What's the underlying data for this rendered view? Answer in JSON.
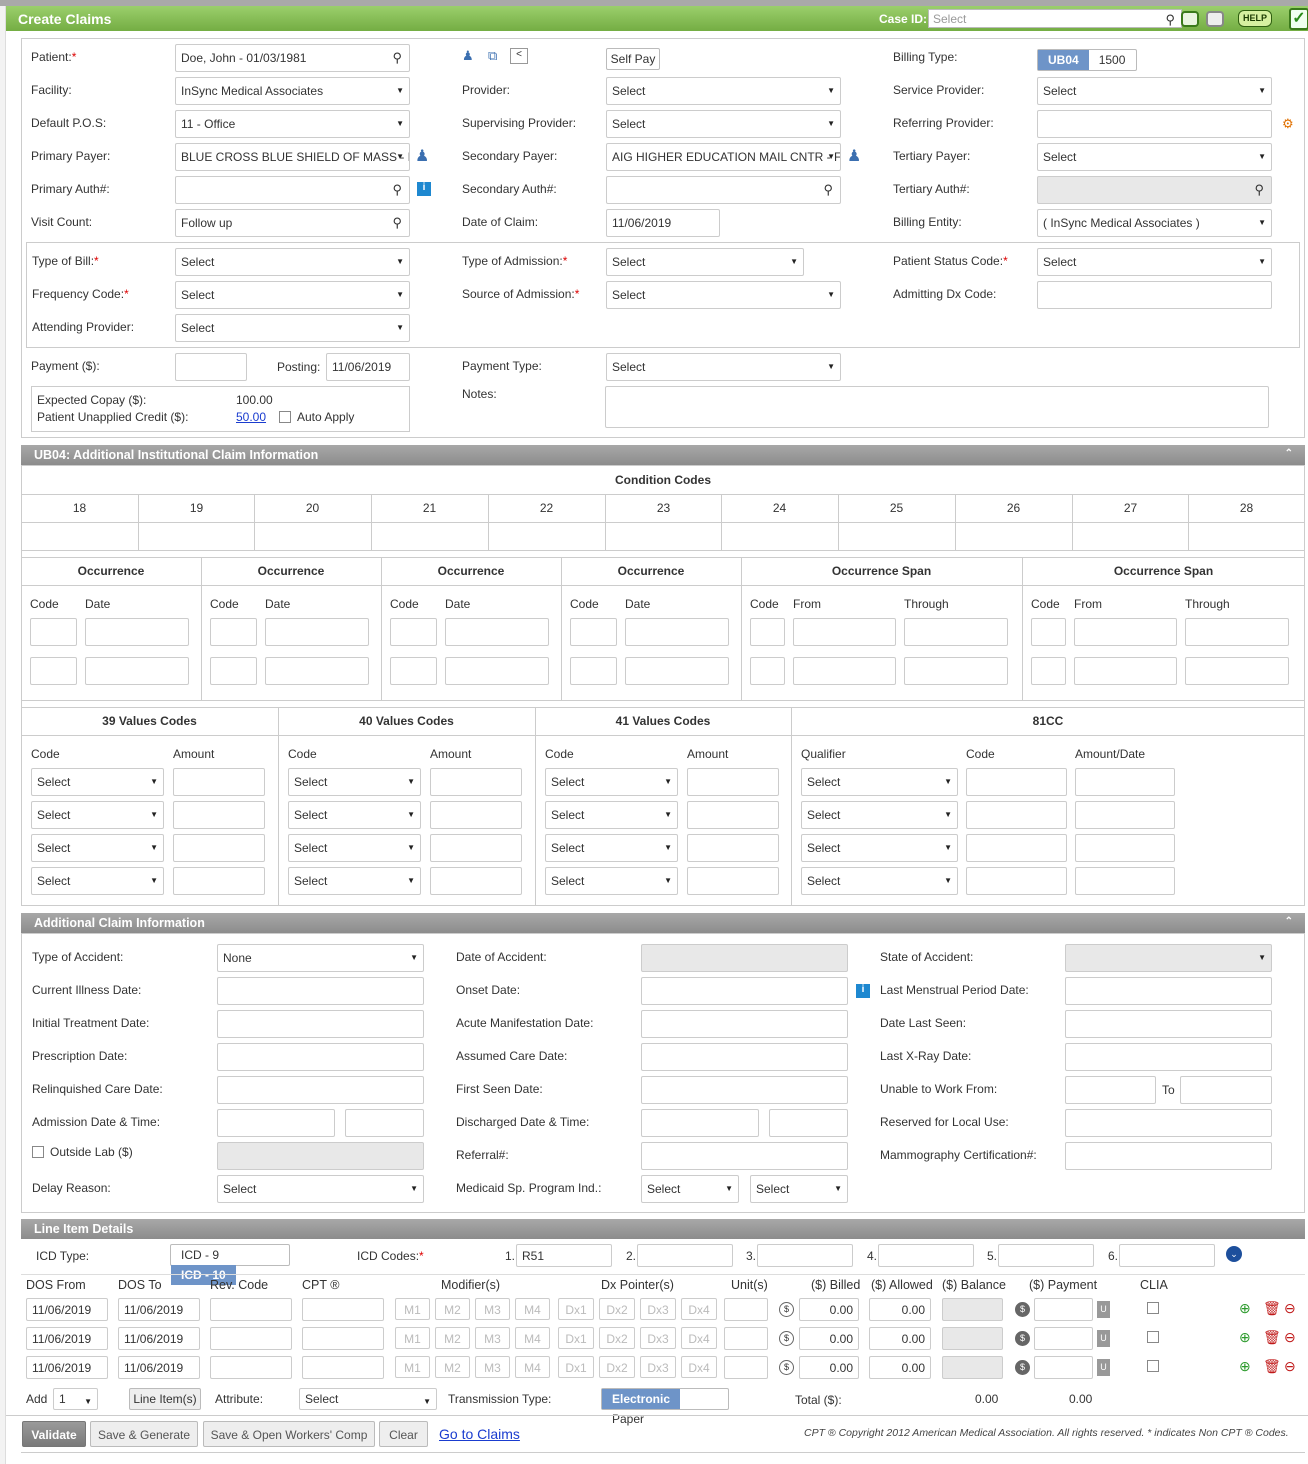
{
  "header": {
    "title": "Create Claims",
    "case_id_label": "Case ID:",
    "case_id_placeholder": "Select",
    "help": "HELP"
  },
  "claim": {
    "patient_label": "Patient:",
    "patient_value": "Doe, John - 01/03/1981",
    "self_pay": "Self Pay",
    "billing_type_label": "Billing Type:",
    "billing_ub04": "UB04",
    "billing_1500": "1500",
    "facility_label": "Facility:",
    "facility_value": "InSync Medical Associates",
    "provider_label": "Provider:",
    "provider_value": "Select",
    "service_provider_label": "Service Provider:",
    "service_provider_value": "Select",
    "pos_label": "Default P.O.S:",
    "pos_value": "11 - Office",
    "supervising_label": "Supervising Provider:",
    "supervising_value": "Select",
    "referring_label": "Referring Provider:",
    "primary_payer_label": "Primary Payer:",
    "primary_payer_value": "BLUE CROSS BLUE SHIELD OF MASS - F",
    "secondary_payer_label": "Secondary Payer:",
    "secondary_payer_value": "AIG HIGHER EDUCATION MAIL CNTR - F",
    "tertiary_payer_label": "Tertiary Payer:",
    "tertiary_payer_value": "Select",
    "primary_auth_label": "Primary Auth#:",
    "secondary_auth_label": "Secondary Auth#:",
    "tertiary_auth_label": "Tertiary Auth#:",
    "visit_count_label": "Visit Count:",
    "visit_count_value": "Follow up",
    "date_of_claim_label": "Date of Claim:",
    "date_of_claim_value": "11/06/2019",
    "billing_entity_label": "Billing Entity:",
    "billing_entity_value": "( InSync Medical Associates )",
    "type_of_bill_label": "Type of Bill:",
    "type_of_bill_value": "Select",
    "type_of_admission_label": "Type of Admission:",
    "type_of_admission_value": "Select",
    "patient_status_label": "Patient Status Code:",
    "patient_status_value": "Select",
    "frequency_label": "Frequency Code:",
    "frequency_value": "Select",
    "source_admission_label": "Source of Admission:",
    "source_admission_value": "Select",
    "admitting_dx_label": "Admitting Dx Code:",
    "attending_label": "Attending Provider:",
    "attending_value": "Select",
    "payment_label": "Payment ($):",
    "posting_label": "Posting:",
    "posting_value": "11/06/2019",
    "payment_type_label": "Payment Type:",
    "payment_type_value": "Select",
    "copay_label": "Expected Copay ($):",
    "copay_value": "100.00",
    "unapplied_label": "Patient Unapplied Credit ($):",
    "unapplied_value": "50.00",
    "auto_apply": "Auto Apply",
    "notes_label": "Notes:"
  },
  "ub04": {
    "title": "UB04: Additional Institutional Claim Information",
    "condition_codes_title": "Condition Codes",
    "condition_cols": [
      "18",
      "19",
      "20",
      "21",
      "22",
      "23",
      "24",
      "25",
      "26",
      "27",
      "28"
    ],
    "occurrence": "Occurrence",
    "occurrence_span": "Occurrence Span",
    "code": "Code",
    "date": "Date",
    "from": "From",
    "through": "Through",
    "values39": "39 Values Codes",
    "values40": "40 Values Codes",
    "values41": "41 Values Codes",
    "cc81": "81CC",
    "amount": "Amount",
    "qualifier": "Qualifier",
    "amount_date": "Amount/Date",
    "select": "Select"
  },
  "additional": {
    "title": "Additional Claim Information",
    "type_accident_label": "Type of Accident:",
    "type_accident_value": "None",
    "date_accident_label": "Date of Accident:",
    "state_accident_label": "State of Accident:",
    "current_illness_label": "Current Illness Date:",
    "onset_label": "Onset Date:",
    "lmp_label": "Last Menstrual Period Date:",
    "initial_treatment_label": "Initial Treatment Date:",
    "acute_label": "Acute Manifestation Date:",
    "last_seen_label": "Date Last Seen:",
    "prescription_label": "Prescription Date:",
    "assumed_care_label": "Assumed Care Date:",
    "last_xray_label": "Last X-Ray Date:",
    "relinquished_label": "Relinquished Care Date:",
    "first_seen_label": "First Seen Date:",
    "unable_work_label": "Unable to Work From:",
    "to_label": "To",
    "admission_label": "Admission Date & Time:",
    "discharged_label": "Discharged Date & Time:",
    "reserved_label": "Reserved for Local Use:",
    "outside_lab_label": "Outside Lab ($)",
    "referral_label": "Referral#:",
    "mammography_label": "Mammography Certification#:",
    "delay_reason_label": "Delay Reason:",
    "delay_reason_value": "Select",
    "medicaid_label": "Medicaid Sp. Program Ind.:",
    "medicaid_value1": "Select",
    "medicaid_value2": "Select"
  },
  "line_items": {
    "title": "Line Item Details",
    "icd_type_label": "ICD Type:",
    "icd9": "ICD - 9",
    "icd10": "ICD - 10",
    "icd_codes_label": "ICD Codes:",
    "icd_nums": [
      "1.",
      "2.",
      "3.",
      "4.",
      "5.",
      "6."
    ],
    "icd_values": [
      "R51",
      "",
      "",
      "",
      "",
      ""
    ],
    "columns": [
      "DOS From",
      "DOS To",
      "Rev. Code",
      "CPT ®",
      "Modifier(s)",
      "Dx Pointer(s)",
      "Unit(s)",
      "($) Billed",
      "($) Allowed",
      "($) Balance",
      "($) Payment",
      "CLIA"
    ],
    "modifiers": [
      "M1",
      "M2",
      "M3",
      "M4"
    ],
    "pointers": [
      "Dx1",
      "Dx2",
      "Dx3",
      "Dx4"
    ],
    "rows": [
      {
        "dos_from": "11/06/2019",
        "dos_to": "11/06/2019",
        "billed": "0.00",
        "allowed": "0.00"
      },
      {
        "dos_from": "11/06/2019",
        "dos_to": "11/06/2019",
        "billed": "0.00",
        "allowed": "0.00"
      },
      {
        "dos_from": "11/06/2019",
        "dos_to": "11/06/2019",
        "billed": "0.00",
        "allowed": "0.00"
      }
    ],
    "add_label": "Add",
    "add_value": "1",
    "line_items_btn": "Line Item(s)",
    "attribute_label": "Attribute:",
    "attribute_value": "Select",
    "transmission_label": "Transmission Type:",
    "electronic": "Electronic",
    "paper": "Paper",
    "total_label": "Total ($):",
    "total_billed": "0.00",
    "total_payment": "0.00"
  },
  "footer": {
    "validate": "Validate",
    "save_generate": "Save & Generate",
    "save_open_wc": "Save & Open Workers' Comp",
    "clear": "Clear",
    "go_to_claims": "Go to Claims",
    "copyright": "CPT ® Copyright 2012 American Medical Association. All rights reserved. * indicates Non CPT ® Codes."
  }
}
